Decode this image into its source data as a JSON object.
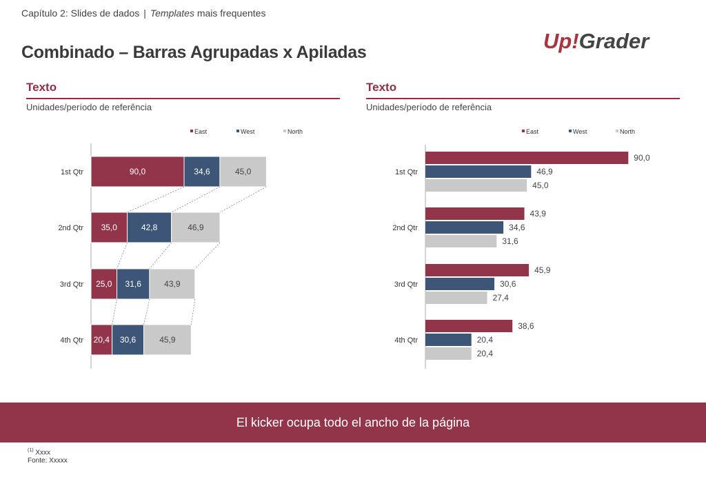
{
  "breadcrumb": {
    "chapter": "Capítulo 2: Slides de dados",
    "separator": "|",
    "italic": "Templates",
    "rest": "mais frequentes"
  },
  "page_title": "Combinado – Barras Agrupadas x Apiladas",
  "logo_text": "Up!Grader",
  "colors": {
    "accent": "#93354a",
    "east": "#93354a",
    "west": "#3d5576",
    "north": "#c9c9c9",
    "logo_red": "#a8353d",
    "logo_dark": "#444444"
  },
  "left_panel": {
    "heading": "Texto",
    "subheading": "Unidades/período de referência"
  },
  "right_panel": {
    "heading": "Texto",
    "subheading": "Unidades/período de referência"
  },
  "chart_data": [
    {
      "type": "bar",
      "orientation": "horizontal",
      "stacked": true,
      "legend_position": "top",
      "categories": [
        "1st Qtr",
        "2nd Qtr",
        "3rd Qtr",
        "4th Qtr"
      ],
      "series": [
        {
          "name": "East",
          "values": [
            90.0,
            35.0,
            25.0,
            20.4
          ],
          "labels": [
            "90,0",
            "35,0",
            "25,0",
            "20,4"
          ]
        },
        {
          "name": "West",
          "values": [
            34.6,
            42.8,
            31.6,
            30.6
          ],
          "labels": [
            "34,6",
            "42,8",
            "31,6",
            "30,6"
          ]
        },
        {
          "name": "North",
          "values": [
            45.0,
            46.9,
            43.9,
            45.9
          ],
          "labels": [
            "45,0",
            "46,9",
            "43,9",
            "45,9"
          ]
        }
      ],
      "series_lines": true
    },
    {
      "type": "bar",
      "orientation": "horizontal",
      "stacked": false,
      "legend_position": "top",
      "categories": [
        "1st Qtr",
        "2nd Qtr",
        "3rd Qtr",
        "4th Qtr"
      ],
      "series": [
        {
          "name": "East",
          "values": [
            90.0,
            43.9,
            45.9,
            38.6
          ],
          "labels": [
            "90,0",
            "43,9",
            "45,9",
            "38,6"
          ]
        },
        {
          "name": "West",
          "values": [
            46.9,
            34.6,
            30.6,
            20.4
          ],
          "labels": [
            "46,9",
            "34,6",
            "30,6",
            "20,4"
          ]
        },
        {
          "name": "North",
          "values": [
            45.0,
            31.6,
            27.4,
            20.4
          ],
          "labels": [
            "45,0",
            "31,6",
            "27,4",
            "20,4"
          ]
        }
      ]
    }
  ],
  "kicker": "El kicker ocupa todo el ancho de la página",
  "footnote": {
    "marker": "(1)",
    "note": "Xxxx",
    "source": "Fonte: Xxxxx"
  }
}
